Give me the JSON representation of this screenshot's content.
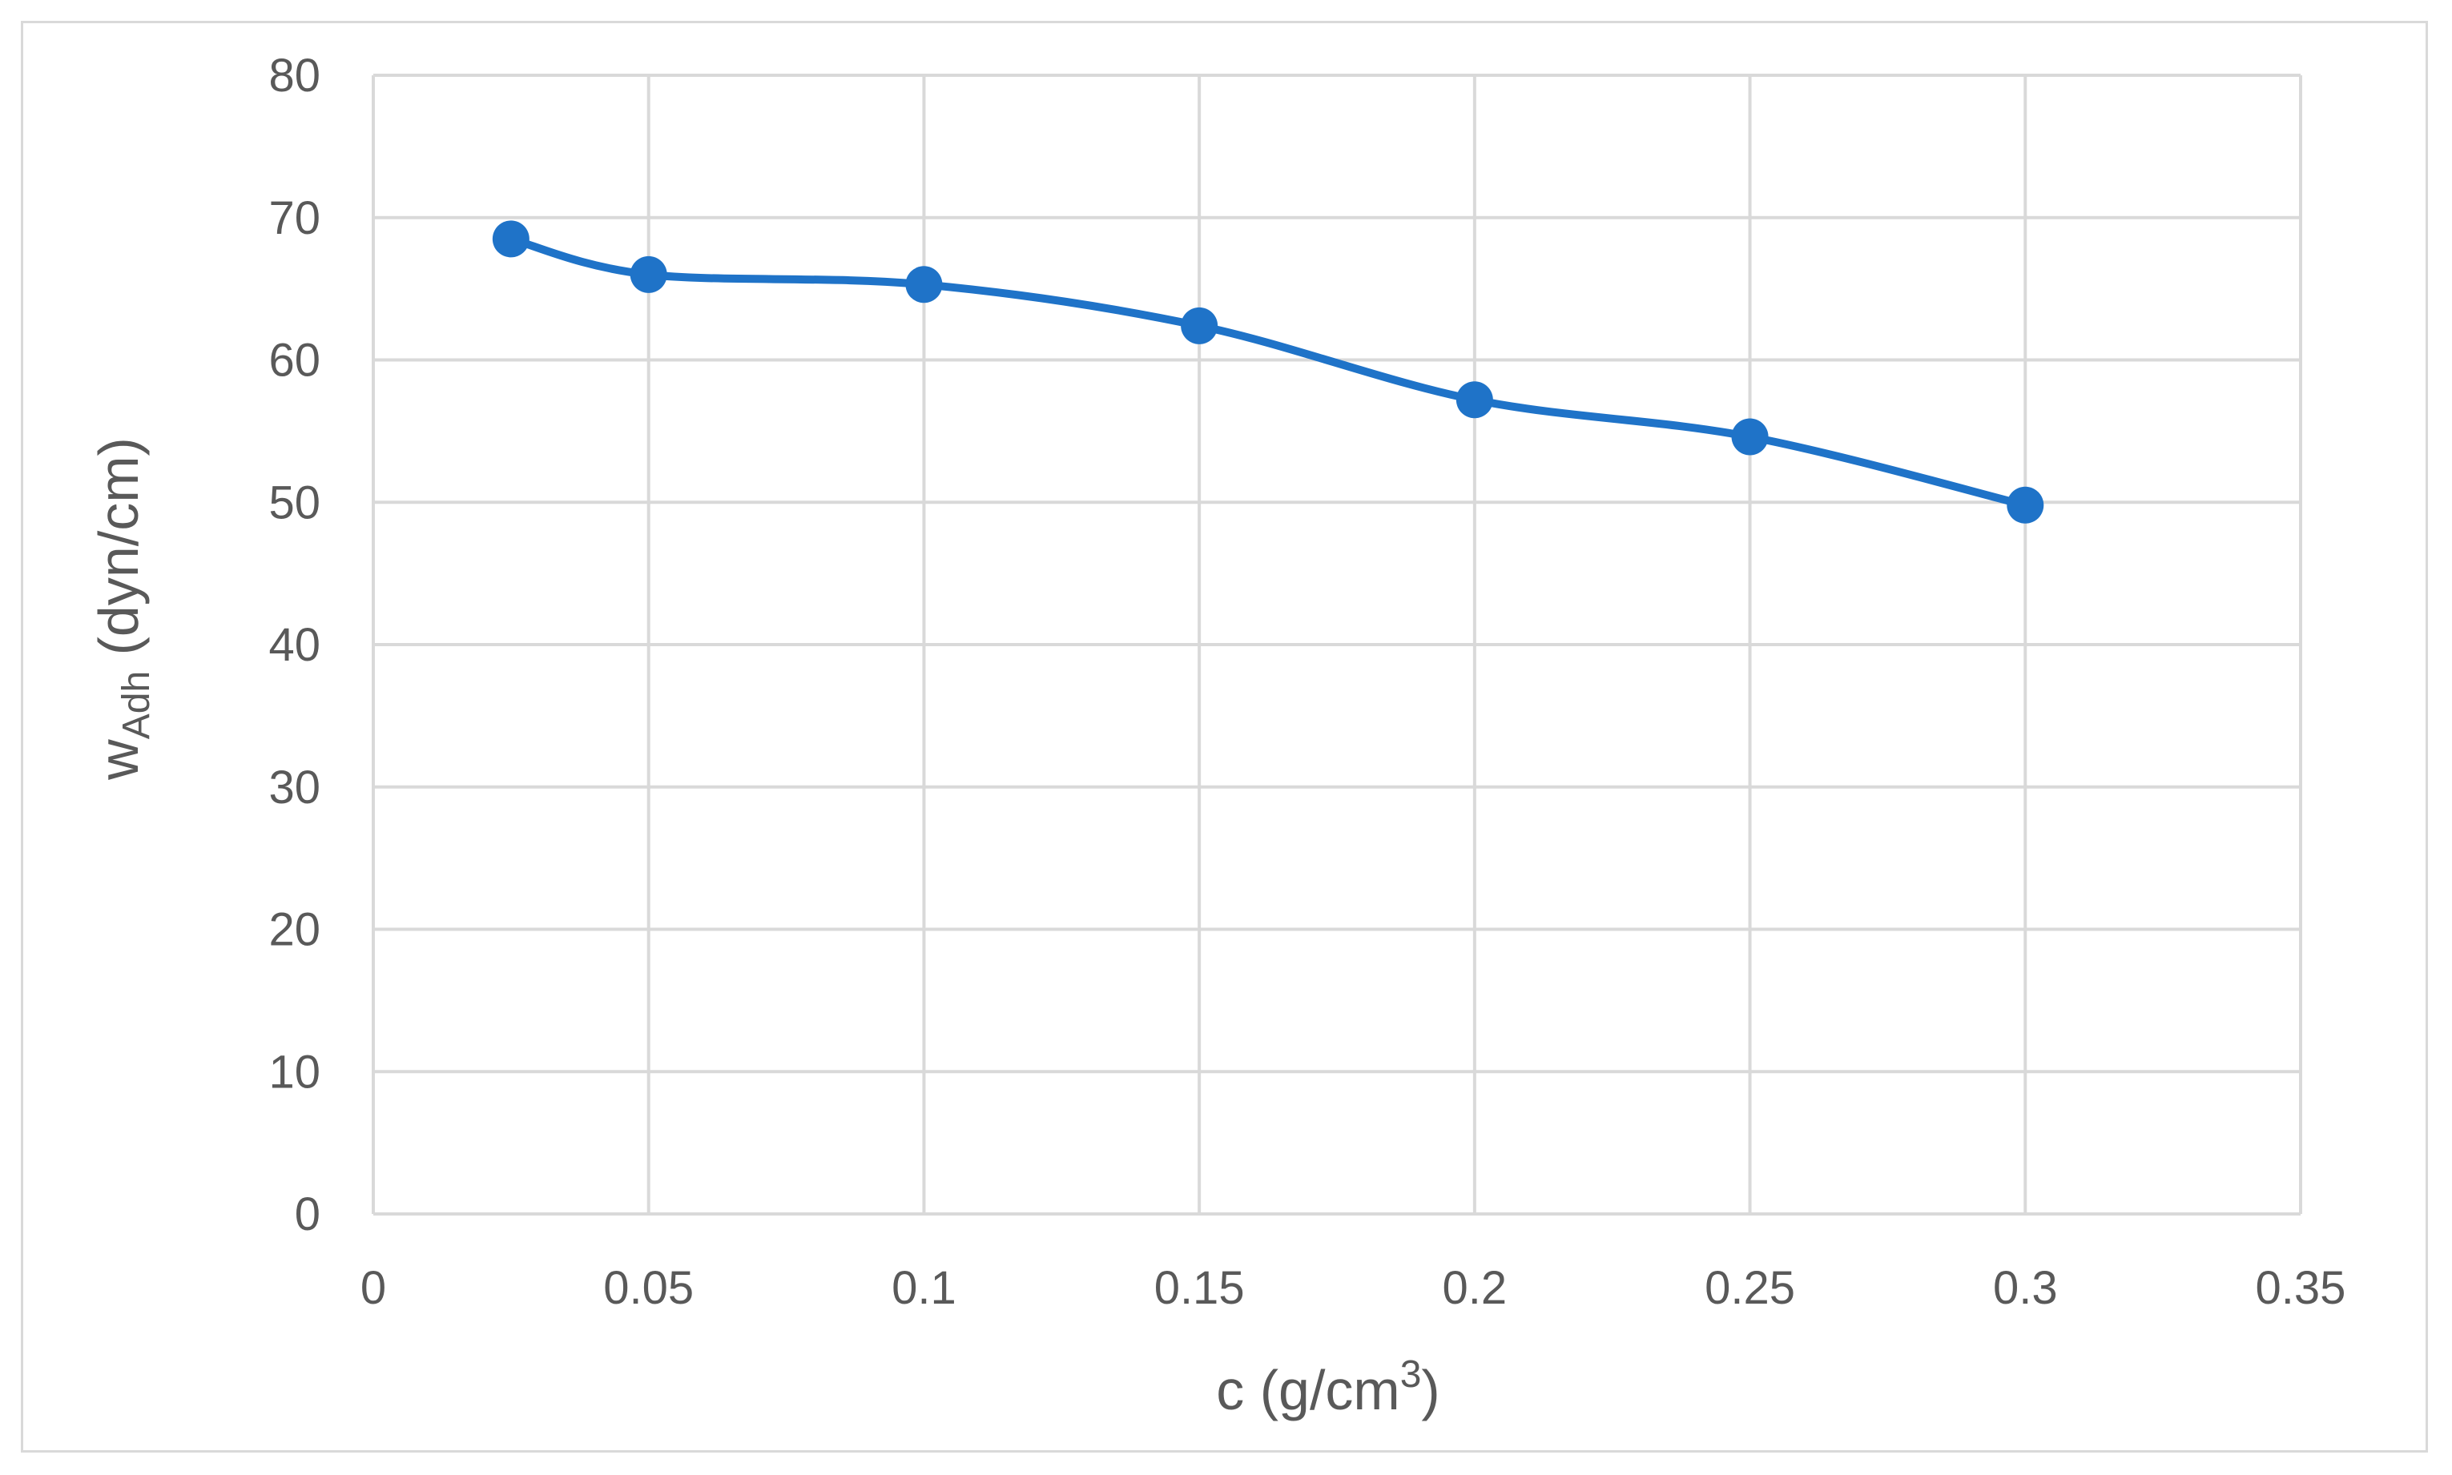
{
  "chart_data": {
    "type": "line",
    "title": "",
    "xlabel": {
      "prefix": "c (g/cm",
      "sup": "3",
      "suffix": ")"
    },
    "ylabel": {
      "main": "w",
      "sub": "Adh",
      "suffix": " (dyn/cm)"
    },
    "xlim": [
      0,
      0.35
    ],
    "ylim": [
      0,
      80
    ],
    "xticks": [
      0,
      0.05,
      0.1,
      0.15,
      0.2,
      0.25,
      0.3,
      0.35
    ],
    "xtick_labels": [
      "0",
      "0.05",
      "0.1",
      "0.15",
      "0.2",
      "0.25",
      "0.3",
      "0.35"
    ],
    "yticks": [
      0,
      10,
      20,
      30,
      40,
      50,
      60,
      70,
      80
    ],
    "ytick_labels": [
      "0",
      "10",
      "20",
      "30",
      "40",
      "50",
      "60",
      "70",
      "80"
    ],
    "grid": true,
    "smooth": true,
    "series": [
      {
        "color": "#1f73c8",
        "x": [
          0.025,
          0.05,
          0.1,
          0.15,
          0.2,
          0.25,
          0.3
        ],
        "y": [
          68.5,
          66.0,
          65.3,
          62.4,
          57.2,
          54.6,
          49.8
        ]
      }
    ]
  }
}
